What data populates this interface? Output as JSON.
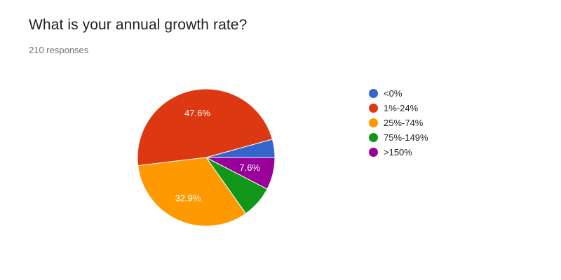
{
  "title": "What is your annual growth rate?",
  "responses_label": "210 responses",
  "chart_data": {
    "type": "pie",
    "title": "What is your annual growth rate?",
    "categories": [
      "<0%",
      "1%-24%",
      "25%-74%",
      "75%-149%",
      ">150%"
    ],
    "values": [
      4.3,
      47.6,
      32.9,
      7.6,
      7.6
    ],
    "slice_labels": [
      "",
      "47.6%",
      "32.9%",
      "",
      "7.6%"
    ],
    "colors": [
      "#3366cc",
      "#dc3912",
      "#ff9900",
      "#109618",
      "#990099"
    ],
    "start": "right (3 o'clock), counter-clockwise",
    "legend_position": "right"
  }
}
